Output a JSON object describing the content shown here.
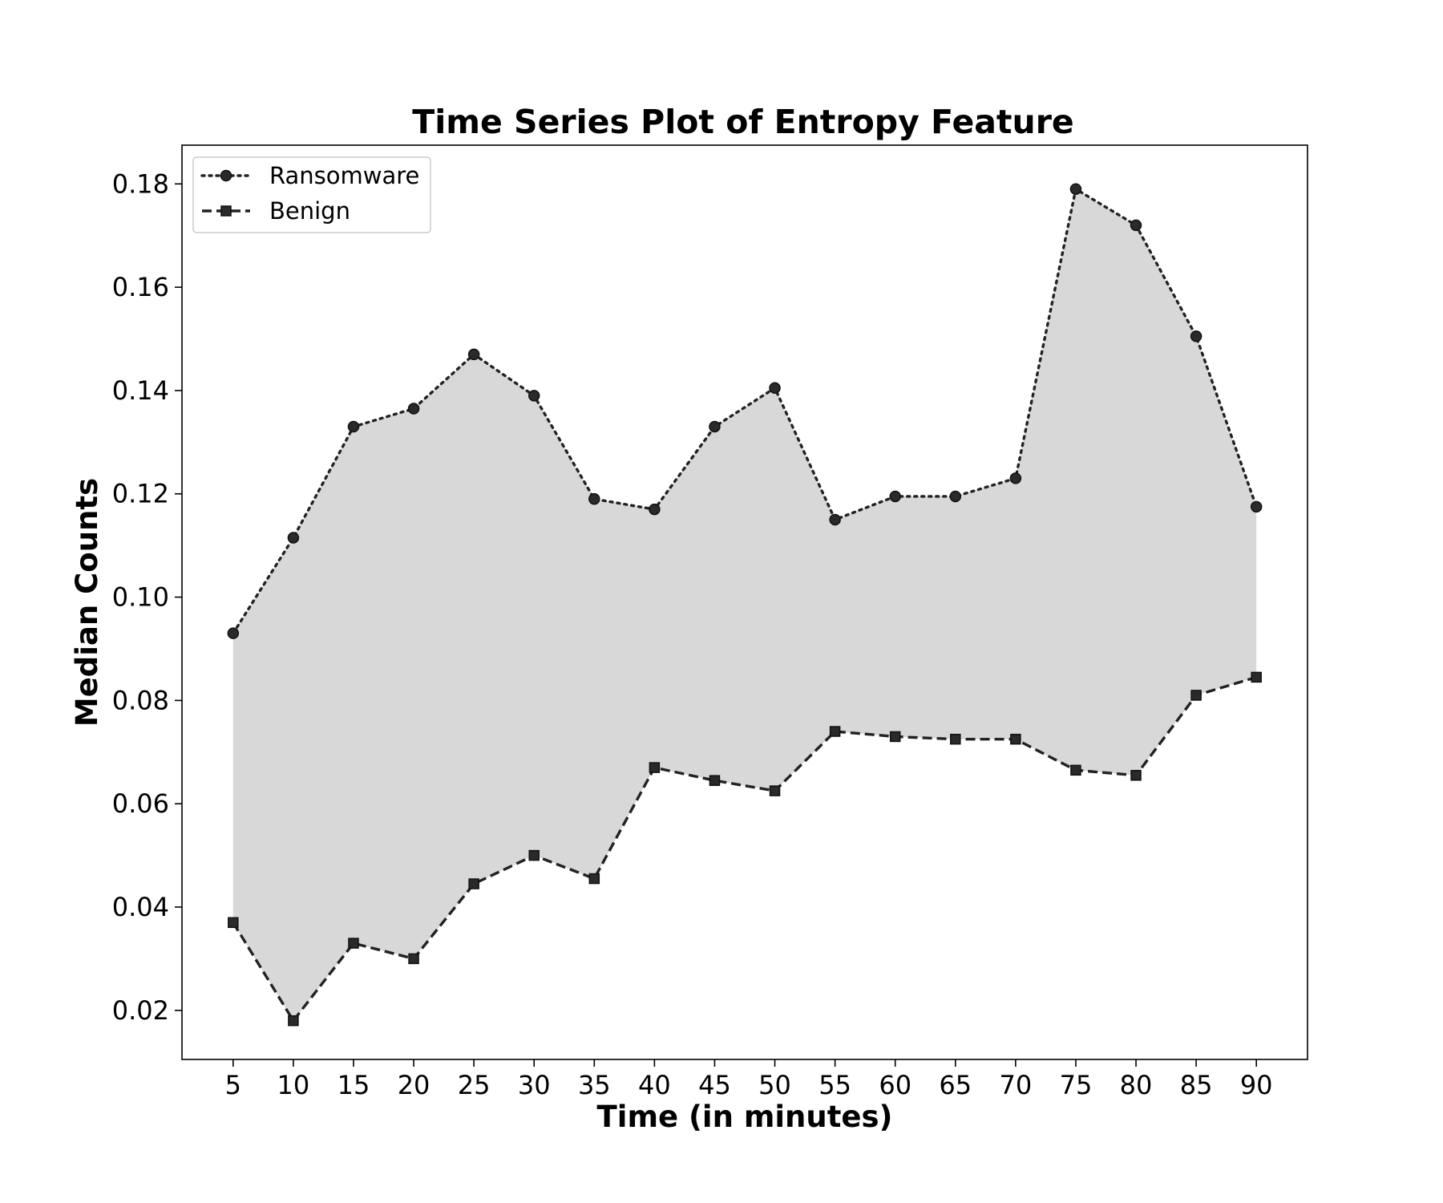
{
  "chart_data": {
    "type": "line",
    "title": "Time Series Plot of Entropy Feature",
    "xlabel": "Time (in minutes)",
    "ylabel": "Median Counts",
    "x": [
      5,
      10,
      15,
      20,
      25,
      30,
      35,
      40,
      45,
      50,
      55,
      60,
      65,
      70,
      75,
      80,
      85,
      90
    ],
    "xlim": [
      0.75,
      94.25
    ],
    "ylim": [
      0.0105,
      0.1875
    ],
    "yticks": [
      0.02,
      0.04,
      0.06,
      0.08,
      0.1,
      0.12,
      0.14,
      0.16,
      0.18
    ],
    "ytick_labels": [
      "0.02",
      "0.04",
      "0.06",
      "0.08",
      "0.10",
      "0.12",
      "0.14",
      "0.16",
      "0.18"
    ],
    "xtick_labels": [
      "5",
      "10",
      "15",
      "20",
      "25",
      "30",
      "35",
      "40",
      "45",
      "50",
      "55",
      "60",
      "65",
      "70",
      "75",
      "80",
      "85",
      "90"
    ],
    "series": [
      {
        "name": "Ransomware",
        "line_style": "dotted",
        "marker": "circle",
        "color": "#222222",
        "values": [
          0.093,
          0.1115,
          0.133,
          0.1365,
          0.147,
          0.139,
          0.119,
          0.117,
          0.133,
          0.1405,
          0.115,
          0.1195,
          0.1195,
          0.123,
          0.179,
          0.172,
          0.1505,
          0.1175
        ]
      },
      {
        "name": "Benign",
        "line_style": "dashed",
        "marker": "square",
        "color": "#222222",
        "values": [
          0.037,
          0.018,
          0.033,
          0.03,
          0.0445,
          0.05,
          0.0455,
          0.067,
          0.0645,
          0.0625,
          0.074,
          0.073,
          0.0725,
          0.0725,
          0.0665,
          0.0655,
          0.081,
          0.0845
        ]
      }
    ],
    "fill_between": {
      "color": "#d8d8d8"
    },
    "legend_position": "upper-left",
    "grid": false
  }
}
